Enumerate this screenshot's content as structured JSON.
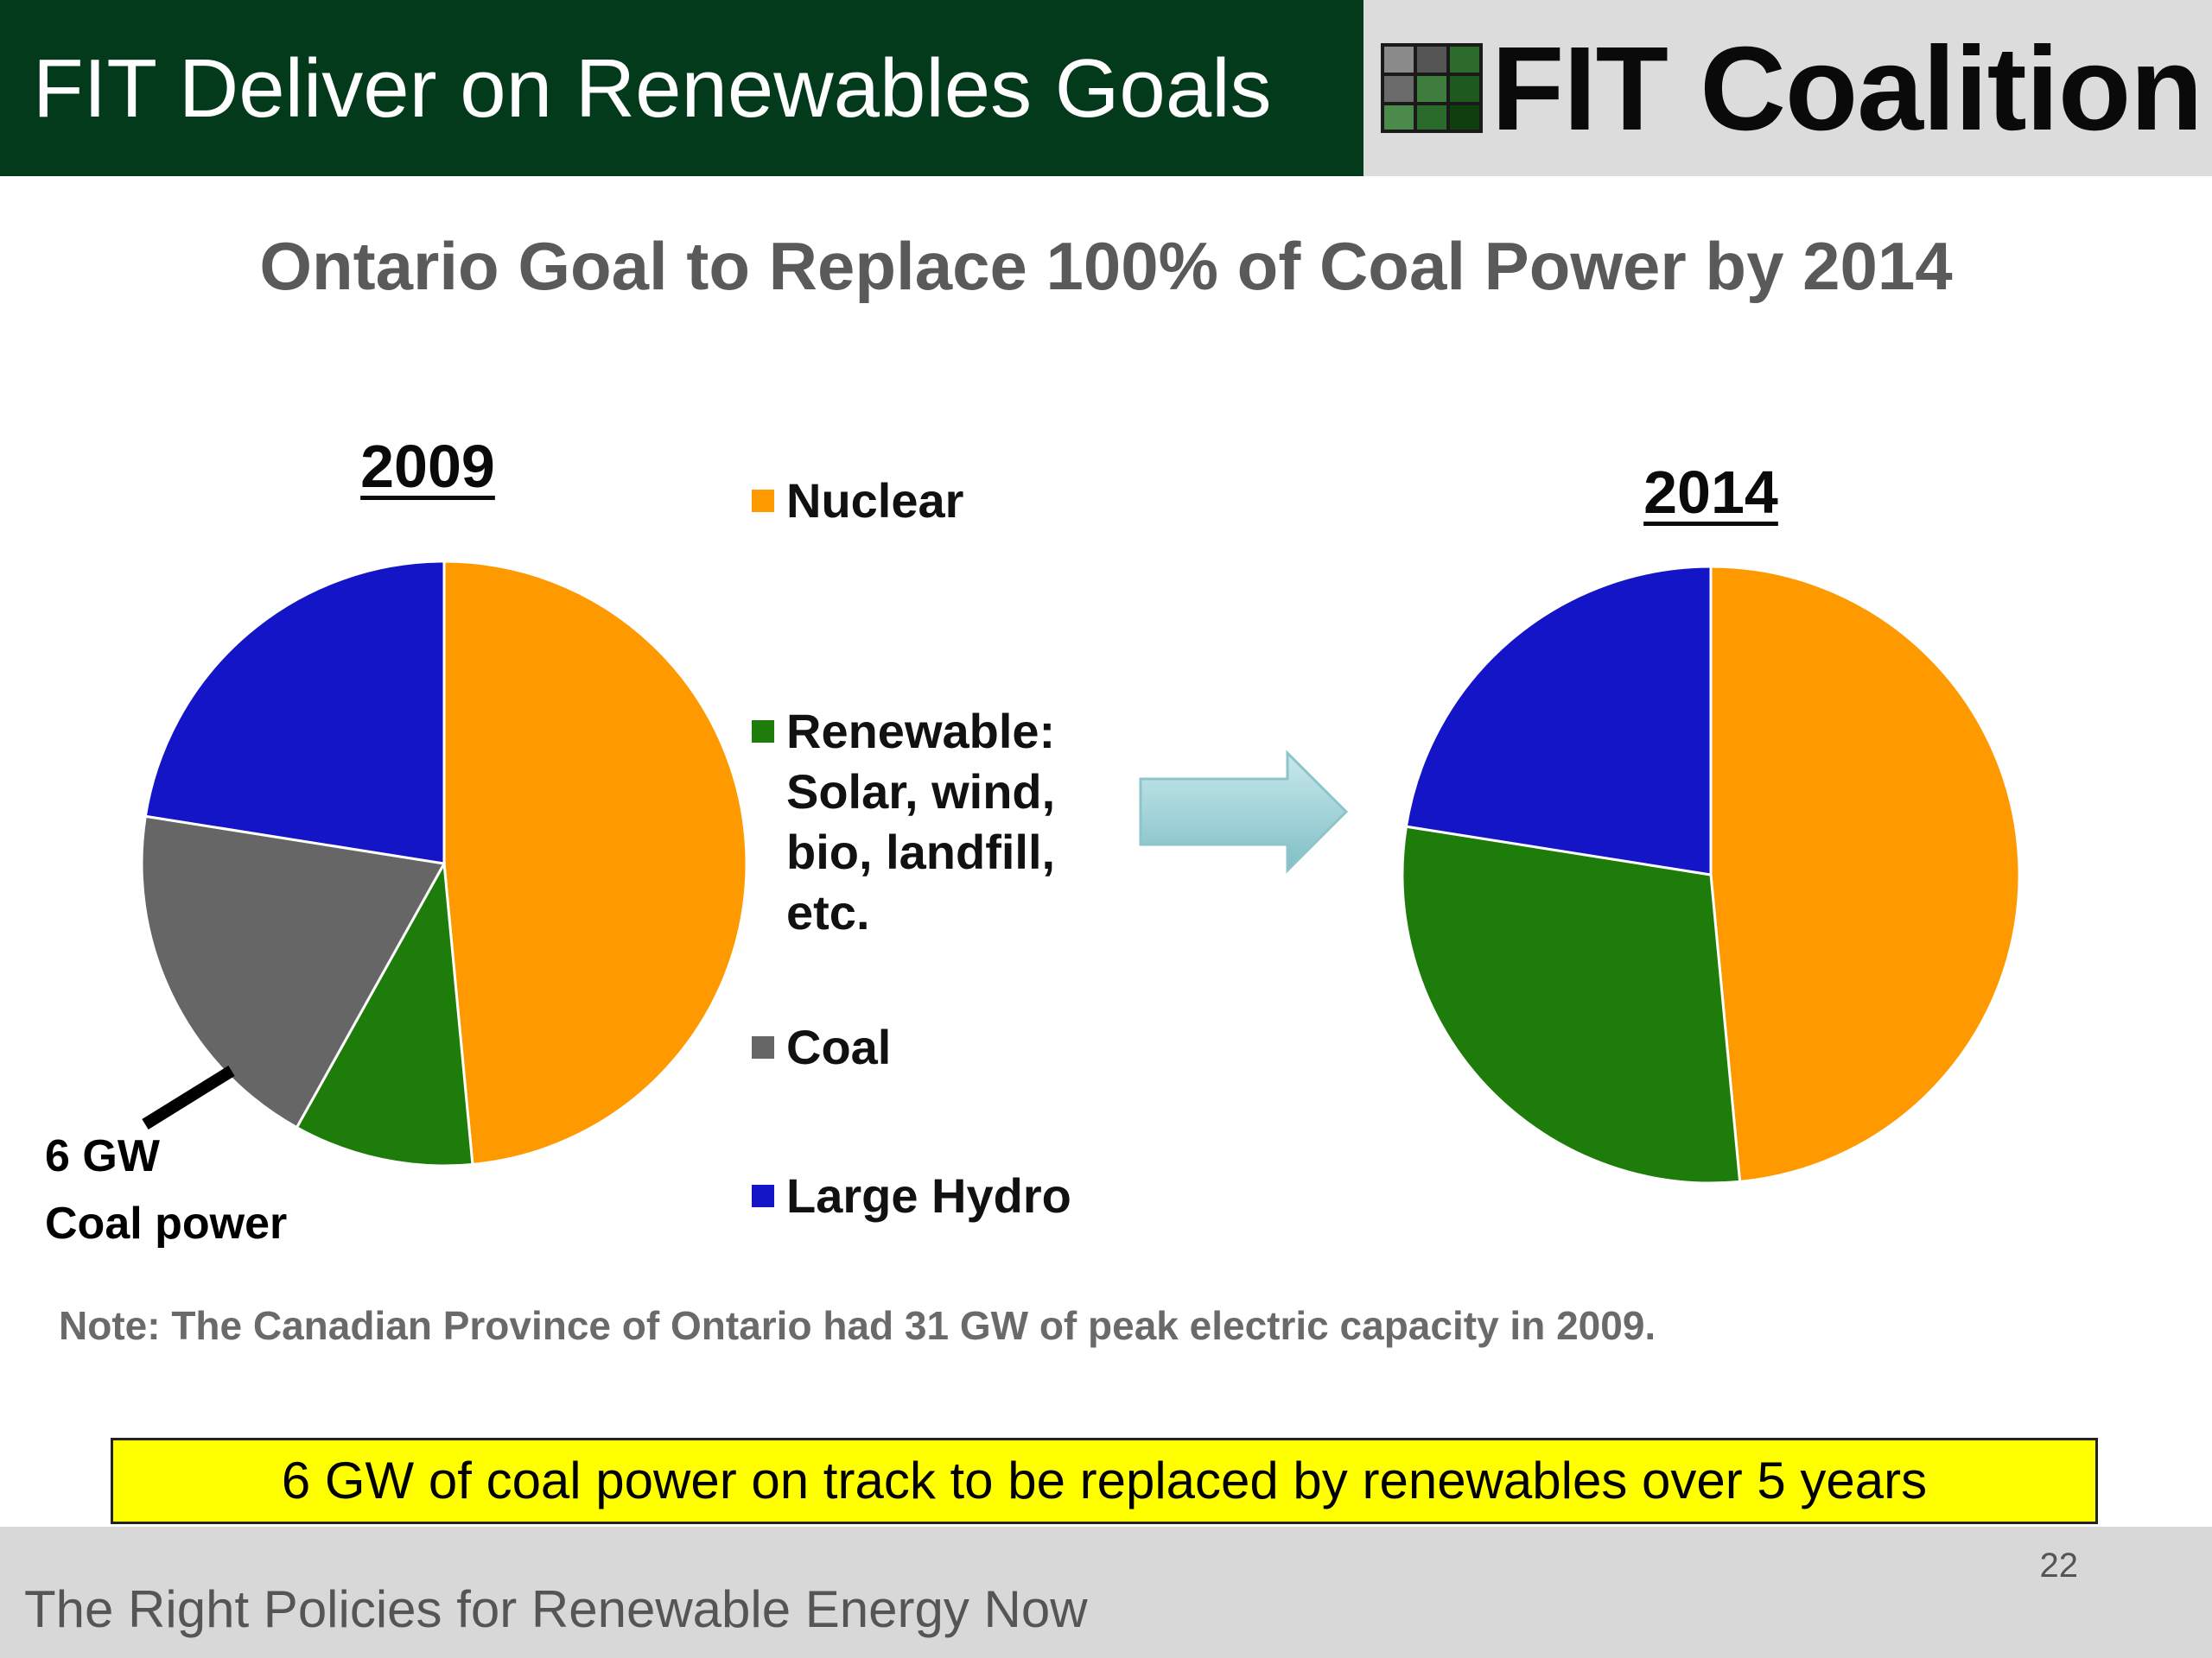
{
  "header": {
    "title": "FIT Deliver on Renewables Goals"
  },
  "logo": {
    "text": "FIT Coalition"
  },
  "slide": {
    "title": "Ontario Goal to Replace 100% of Coal Power by 2014"
  },
  "callout": {
    "text": "6 GW\nCoal power"
  },
  "note": {
    "text": "Note:  The Canadian Province of Ontario had 31 GW of peak electric capacity in 2009."
  },
  "highlight": {
    "text": "6 GW of coal power on track to be replaced by renewables over 5 years"
  },
  "footer": {
    "text": "The Right Policies for Renewable Energy Now",
    "page_number": "22"
  },
  "colors": {
    "header_bg": "#043a1c",
    "nuclear": "#ff9900",
    "renewable": "#1e7d0a",
    "coal": "#666666",
    "hydro": "#1515c8",
    "highlight": "#ffff00",
    "arrow": "#9ed3d8"
  },
  "chart_data": [
    {
      "type": "pie",
      "title": "2009",
      "labels": [
        "Nuclear",
        "Renewable: Solar, wind, bio, landfill, etc.",
        "Coal",
        "Large Hydro"
      ],
      "values": [
        48.5,
        9.6,
        19.4,
        22.5
      ],
      "colors": [
        "#ff9900",
        "#1e7d0a",
        "#666666",
        "#1515c8"
      ],
      "start": "12 o'clock",
      "direction": "clockwise",
      "annotation": "6 GW Coal power"
    },
    {
      "type": "pie",
      "title": "2014",
      "labels": [
        "Nuclear",
        "Renewable: Solar, wind, bio, landfill, etc.",
        "Coal",
        "Large Hydro"
      ],
      "values": [
        48.5,
        29.0,
        0,
        22.5
      ],
      "colors": [
        "#ff9900",
        "#1e7d0a",
        "#666666",
        "#1515c8"
      ],
      "start": "12 o'clock",
      "direction": "clockwise"
    }
  ],
  "legend": {
    "items": [
      {
        "label": "Nuclear",
        "color": "#ff9900"
      },
      {
        "label": "Renewable:\nSolar, wind,\nbio, landfill,\netc.",
        "color": "#1e7d0a"
      },
      {
        "label": "Coal",
        "color": "#666666"
      },
      {
        "label": "Large Hydro",
        "color": "#1515c8"
      }
    ]
  }
}
